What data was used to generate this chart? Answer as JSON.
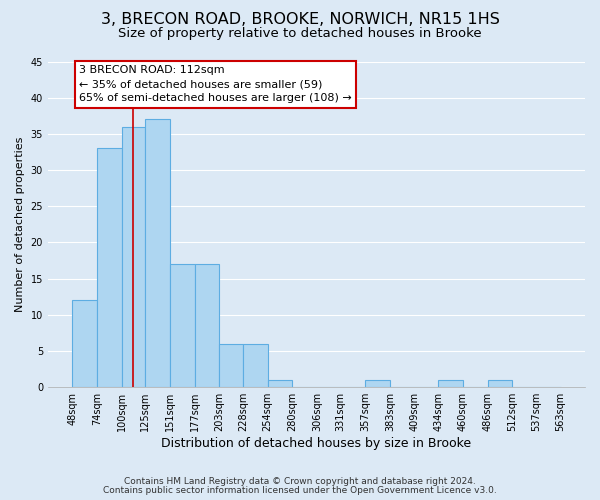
{
  "title": "3, BRECON ROAD, BROOKE, NORWICH, NR15 1HS",
  "subtitle": "Size of property relative to detached houses in Brooke",
  "xlabel": "Distribution of detached houses by size in Brooke",
  "ylabel": "Number of detached properties",
  "bar_edges": [
    48,
    74,
    100,
    125,
    151,
    177,
    203,
    228,
    254,
    280,
    306,
    331,
    357,
    383,
    409,
    434,
    460,
    486,
    512,
    537,
    563
  ],
  "bar_heights": [
    12,
    33,
    36,
    37,
    17,
    17,
    6,
    6,
    1,
    0,
    0,
    0,
    1,
    0,
    0,
    1,
    0,
    1,
    0,
    0
  ],
  "bar_color": "#aed6f1",
  "bar_edgecolor": "#5dade2",
  "bar_linewidth": 0.8,
  "vline_x": 112,
  "vline_color": "#cc0000",
  "vline_linewidth": 1.2,
  "ylim": [
    0,
    45
  ],
  "yticks": [
    0,
    5,
    10,
    15,
    20,
    25,
    30,
    35,
    40,
    45
  ],
  "grid_color": "#ffffff",
  "background_color": "#dce9f5",
  "annotation_line1": "3 BRECON ROAD: 112sqm",
  "annotation_line2": "← 35% of detached houses are smaller (59)",
  "annotation_line3": "65% of semi-detached houses are larger (108) →",
  "annotation_box_edgecolor": "#cc0000",
  "annotation_box_facecolor": "#ffffff",
  "annotation_fontsize": 8.0,
  "title_fontsize": 11.5,
  "subtitle_fontsize": 9.5,
  "xlabel_fontsize": 9,
  "ylabel_fontsize": 8,
  "tick_label_fontsize": 7,
  "footer_line1": "Contains HM Land Registry data © Crown copyright and database right 2024.",
  "footer_line2": "Contains public sector information licensed under the Open Government Licence v3.0.",
  "footer_fontsize": 6.5
}
